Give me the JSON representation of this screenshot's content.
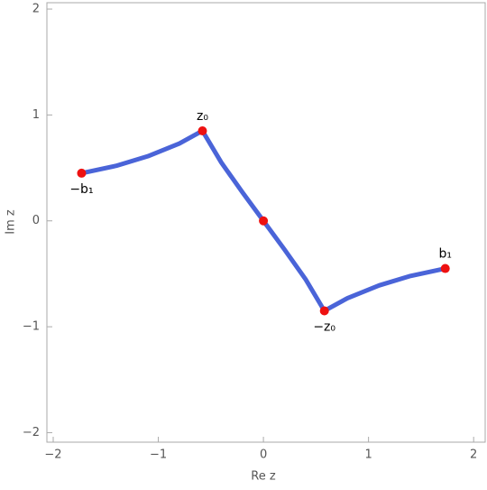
{
  "chart_data": {
    "type": "line",
    "xlabel": "Re z",
    "ylabel": "Im z",
    "xlim": [
      -2.06,
      2.11
    ],
    "ylim": [
      -2.09,
      2.06
    ],
    "xticks": [
      {
        "value": -2,
        "label": "−2"
      },
      {
        "value": -1,
        "label": "−1"
      },
      0,
      1,
      2
    ],
    "yticks": [
      {
        "value": -2,
        "label": "−2"
      },
      {
        "value": -1,
        "label": "−1"
      },
      0,
      1,
      2
    ],
    "series": [
      {
        "color": "#4a64d8",
        "x": [
          -1.73,
          -1.4,
          -1.1,
          -0.8,
          -0.58,
          -0.4,
          -0.2,
          0,
          0.2,
          0.4,
          0.58,
          0.8,
          1.1,
          1.4,
          1.73
        ],
        "values": [
          0.45,
          0.52,
          0.61,
          0.73,
          0.85,
          0.55,
          0.27,
          0,
          -0.27,
          -0.55,
          -0.85,
          -0.73,
          -0.61,
          -0.52,
          -0.45
        ]
      }
    ],
    "points": {
      "color": "#ee1111",
      "x": [
        -1.73,
        -0.58,
        0,
        0.58,
        1.73
      ],
      "values": [
        0.45,
        0.85,
        0,
        -0.85,
        -0.45
      ],
      "labels": [
        "−b₁",
        "z₀",
        null,
        "−z₀",
        "b₁"
      ]
    }
  }
}
